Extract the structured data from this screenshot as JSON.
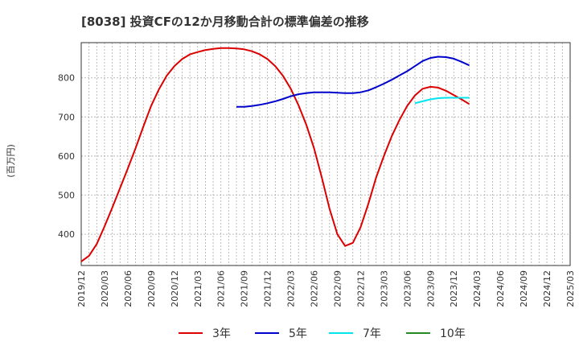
{
  "chart_data": {
    "type": "line",
    "title": "[8038]  投資CFの12か月移動合計の標準偏差の推移",
    "ylabel": "(百万円)",
    "ylim": [
      320,
      890
    ],
    "yticks": [
      400,
      500,
      600,
      700,
      800
    ],
    "xlim": [
      "2019-12",
      "2025-03"
    ],
    "xticks": [
      "2019/12",
      "2020/03",
      "2020/06",
      "2020/09",
      "2020/12",
      "2021/03",
      "2021/06",
      "2021/09",
      "2021/12",
      "2022/03",
      "2022/06",
      "2022/09",
      "2022/12",
      "2023/03",
      "2023/06",
      "2023/09",
      "2023/12",
      "2024/03",
      "2024/06",
      "2024/09",
      "2024/12",
      "2025/03"
    ],
    "grid": true,
    "legend_position": "bottom",
    "series": [
      {
        "name": "3年",
        "color": "#dd0000",
        "points": [
          [
            "2019-12",
            330
          ],
          [
            "2020-01",
            345
          ],
          [
            "2020-02",
            375
          ],
          [
            "2020-03",
            420
          ],
          [
            "2020-04",
            468
          ],
          [
            "2020-05",
            518
          ],
          [
            "2020-06",
            568
          ],
          [
            "2020-07",
            620
          ],
          [
            "2020-08",
            675
          ],
          [
            "2020-09",
            728
          ],
          [
            "2020-10",
            770
          ],
          [
            "2020-11",
            805
          ],
          [
            "2020-12",
            830
          ],
          [
            "2021-01",
            848
          ],
          [
            "2021-02",
            860
          ],
          [
            "2021-03",
            866
          ],
          [
            "2021-04",
            871
          ],
          [
            "2021-05",
            874
          ],
          [
            "2021-06",
            876
          ],
          [
            "2021-07",
            876
          ],
          [
            "2021-08",
            875
          ],
          [
            "2021-09",
            873
          ],
          [
            "2021-10",
            868
          ],
          [
            "2021-11",
            860
          ],
          [
            "2021-12",
            848
          ],
          [
            "2022-01",
            830
          ],
          [
            "2022-02",
            805
          ],
          [
            "2022-03",
            772
          ],
          [
            "2022-04",
            730
          ],
          [
            "2022-05",
            680
          ],
          [
            "2022-06",
            620
          ],
          [
            "2022-07",
            545
          ],
          [
            "2022-08",
            465
          ],
          [
            "2022-09",
            400
          ],
          [
            "2022-10",
            370
          ],
          [
            "2022-11",
            378
          ],
          [
            "2022-12",
            418
          ],
          [
            "2023-01",
            478
          ],
          [
            "2023-02",
            545
          ],
          [
            "2023-03",
            600
          ],
          [
            "2023-04",
            650
          ],
          [
            "2023-05",
            692
          ],
          [
            "2023-06",
            728
          ],
          [
            "2023-07",
            755
          ],
          [
            "2023-08",
            772
          ],
          [
            "2023-09",
            777
          ],
          [
            "2023-10",
            775
          ],
          [
            "2023-11",
            767
          ],
          [
            "2023-12",
            756
          ],
          [
            "2024-01",
            745
          ],
          [
            "2024-02",
            733
          ]
        ]
      },
      {
        "name": "5年",
        "color": "#0000cc",
        "points": [
          [
            "2021-08",
            726
          ],
          [
            "2021-09",
            726
          ],
          [
            "2021-10",
            728
          ],
          [
            "2021-11",
            731
          ],
          [
            "2021-12",
            735
          ],
          [
            "2022-01",
            740
          ],
          [
            "2022-02",
            746
          ],
          [
            "2022-03",
            753
          ],
          [
            "2022-04",
            758
          ],
          [
            "2022-05",
            761
          ],
          [
            "2022-06",
            763
          ],
          [
            "2022-07",
            763
          ],
          [
            "2022-08",
            763
          ],
          [
            "2022-09",
            762
          ],
          [
            "2022-10",
            761
          ],
          [
            "2022-11",
            761
          ],
          [
            "2022-12",
            763
          ],
          [
            "2023-01",
            768
          ],
          [
            "2023-02",
            776
          ],
          [
            "2023-03",
            785
          ],
          [
            "2023-04",
            795
          ],
          [
            "2023-05",
            806
          ],
          [
            "2023-06",
            817
          ],
          [
            "2023-07",
            830
          ],
          [
            "2023-08",
            843
          ],
          [
            "2023-09",
            851
          ],
          [
            "2023-10",
            854
          ],
          [
            "2023-11",
            853
          ],
          [
            "2023-12",
            849
          ],
          [
            "2024-01",
            841
          ],
          [
            "2024-02",
            832
          ]
        ]
      },
      {
        "name": "7年",
        "color": "#00e5ee",
        "points": [
          [
            "2023-07",
            735
          ],
          [
            "2023-08",
            740
          ],
          [
            "2023-09",
            745
          ],
          [
            "2023-10",
            748
          ],
          [
            "2023-11",
            749
          ],
          [
            "2023-12",
            749
          ],
          [
            "2024-01",
            749
          ],
          [
            "2024-02",
            749
          ]
        ]
      },
      {
        "name": "10年",
        "color": "#228b22",
        "points": []
      }
    ]
  }
}
